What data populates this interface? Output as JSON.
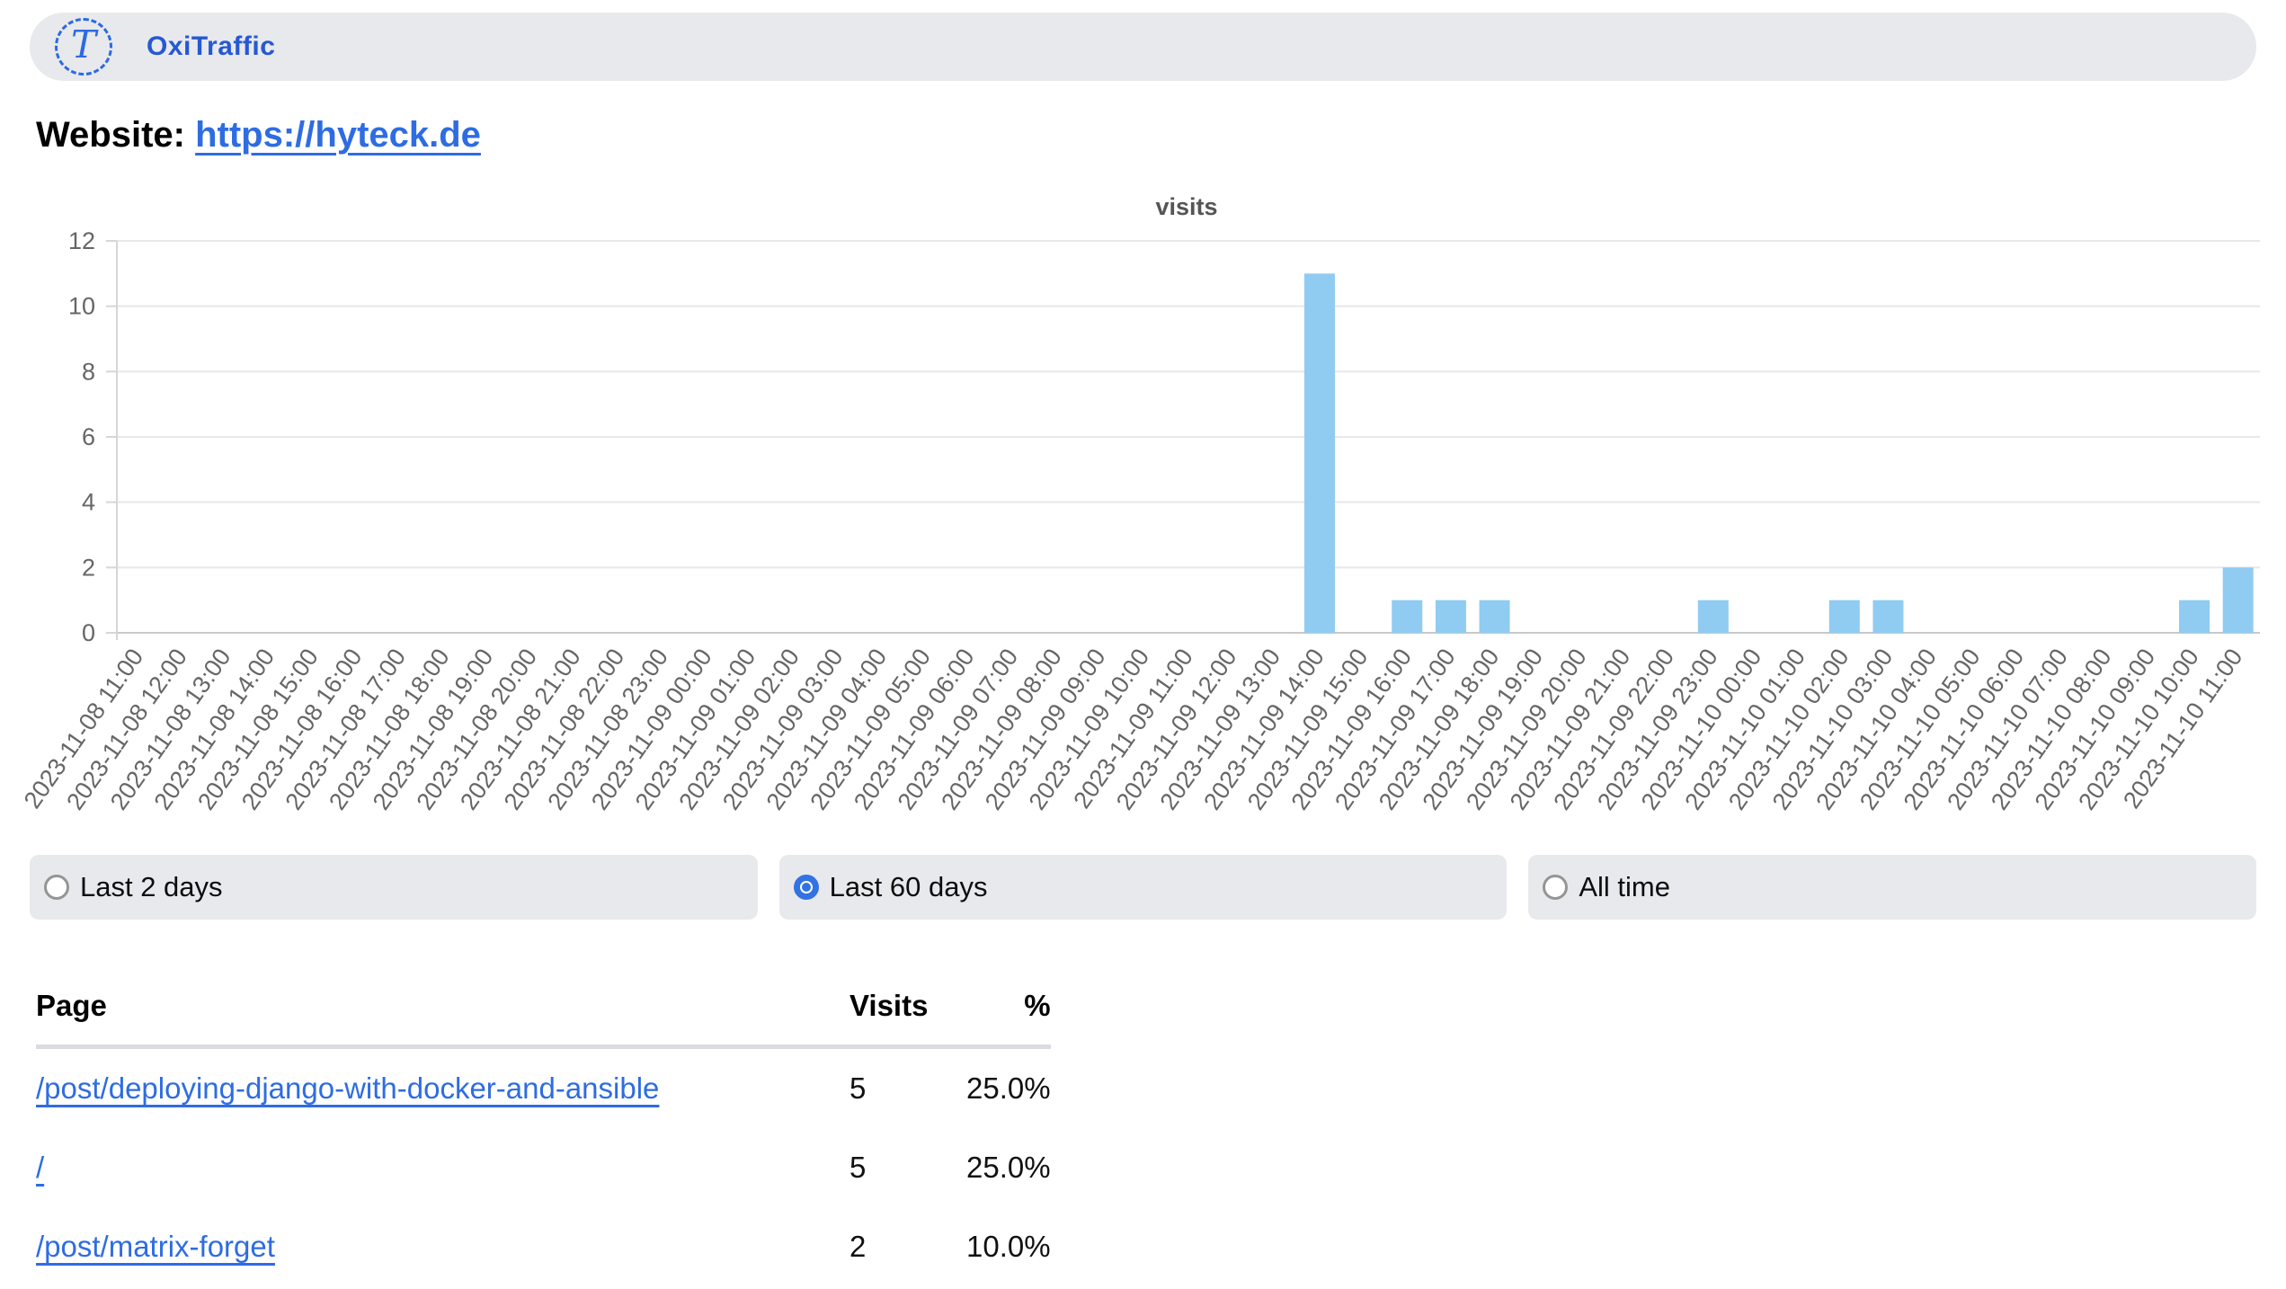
{
  "header": {
    "app_name": "OxiTraffic",
    "logo_letter": "T"
  },
  "website": {
    "label": "Website:",
    "url": "https://hyteck.de"
  },
  "chart_data": {
    "type": "bar",
    "title": "visits",
    "xlabel": "",
    "ylabel": "",
    "ylim": [
      0,
      12
    ],
    "yticks": [
      0,
      2,
      4,
      6,
      8,
      10,
      12
    ],
    "grid": true,
    "legend": "none",
    "bar_color": "#90cbf2",
    "categories": [
      "2023-11-08 11:00",
      "2023-11-08 12:00",
      "2023-11-08 13:00",
      "2023-11-08 14:00",
      "2023-11-08 15:00",
      "2023-11-08 16:00",
      "2023-11-08 17:00",
      "2023-11-08 18:00",
      "2023-11-08 19:00",
      "2023-11-08 20:00",
      "2023-11-08 21:00",
      "2023-11-08 22:00",
      "2023-11-08 23:00",
      "2023-11-09 00:00",
      "2023-11-09 01:00",
      "2023-11-09 02:00",
      "2023-11-09 03:00",
      "2023-11-09 04:00",
      "2023-11-09 05:00",
      "2023-11-09 06:00",
      "2023-11-09 07:00",
      "2023-11-09 08:00",
      "2023-11-09 09:00",
      "2023-11-09 10:00",
      "2023-11-09 11:00",
      "2023-11-09 12:00",
      "2023-11-09 13:00",
      "2023-11-09 14:00",
      "2023-11-09 15:00",
      "2023-11-09 16:00",
      "2023-11-09 17:00",
      "2023-11-09 18:00",
      "2023-11-09 19:00",
      "2023-11-09 20:00",
      "2023-11-09 21:00",
      "2023-11-09 22:00",
      "2023-11-09 23:00",
      "2023-11-10 00:00",
      "2023-11-10 01:00",
      "2023-11-10 02:00",
      "2023-11-10 03:00",
      "2023-11-10 04:00",
      "2023-11-10 05:00",
      "2023-11-10 06:00",
      "2023-11-10 07:00",
      "2023-11-10 08:00",
      "2023-11-10 09:00",
      "2023-11-10 10:00",
      "2023-11-10 11:00"
    ],
    "values": [
      0,
      0,
      0,
      0,
      0,
      0,
      0,
      0,
      0,
      0,
      0,
      0,
      0,
      0,
      0,
      0,
      0,
      0,
      0,
      0,
      0,
      0,
      0,
      0,
      0,
      0,
      0,
      11,
      0,
      1,
      1,
      1,
      0,
      0,
      0,
      0,
      1,
      0,
      0,
      1,
      1,
      0,
      0,
      0,
      0,
      0,
      0,
      1,
      2
    ]
  },
  "time_ranges": {
    "options": [
      {
        "label": "Last 2 days",
        "selected": false
      },
      {
        "label": "Last 60 days",
        "selected": true
      },
      {
        "label": "All time",
        "selected": false
      }
    ]
  },
  "page_table": {
    "columns": {
      "page": "Page",
      "visits": "Visits",
      "percent": "%"
    },
    "rows": [
      {
        "page": "/post/deploying-django-with-docker-and-ansible",
        "visits": "5",
        "percent": "25.0%"
      },
      {
        "page": "/",
        "visits": "5",
        "percent": "25.0%"
      },
      {
        "page": "/post/matrix-forget",
        "visits": "2",
        "percent": "10.0%"
      }
    ]
  },
  "colors": {
    "accent_blue": "#2c6ae2",
    "radio_blue": "#3273e3",
    "bar_blue": "#90cbf2",
    "pill_gray": "#e8e9ec",
    "chart_text_gray": "#666666"
  }
}
